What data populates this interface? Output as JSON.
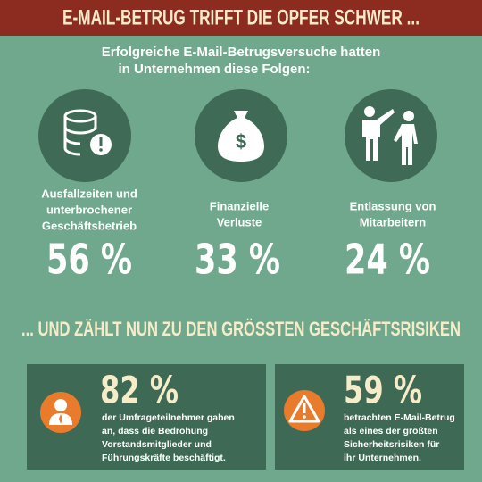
{
  "header": {
    "title": "E-MAIL-BETRUG TRIFFT DIE OPFER SCHWER ..."
  },
  "intro": {
    "lines": [
      "Erfolgreiche E-Mail-Betrugsversuche hatten",
      "in Unternehmen diese Folgen:"
    ]
  },
  "consequences": [
    {
      "label_lines": [
        "Ausfallzeiten und",
        "unterbrochener",
        "Geschäftsbetrieb"
      ],
      "value": "56 %"
    },
    {
      "label_lines": [
        "Finanzielle",
        "Verluste"
      ],
      "value": "33 %"
    },
    {
      "label_lines": [
        "Entlassung von",
        "Mitarbeitern"
      ],
      "value": "24 %"
    }
  ],
  "section": {
    "title": "... UND ZÄHLT NUN ZU DEN GRÖSSTEN GESCHÄFTSRISIKEN"
  },
  "facts": [
    {
      "value": "82 %",
      "text_lines": [
        "der Umfrageteilnehmer gaben",
        "an, dass die Bedrohung",
        "Vorstandsmitglieder und",
        "Führungskräfte beschäftigt."
      ]
    },
    {
      "value": "59 %",
      "text_lines": [
        "betrachten E-Mail-Betrug",
        "als eines der größten",
        "Sicherheitsrisiken für",
        "ihr  Unternehmen."
      ]
    }
  ]
}
